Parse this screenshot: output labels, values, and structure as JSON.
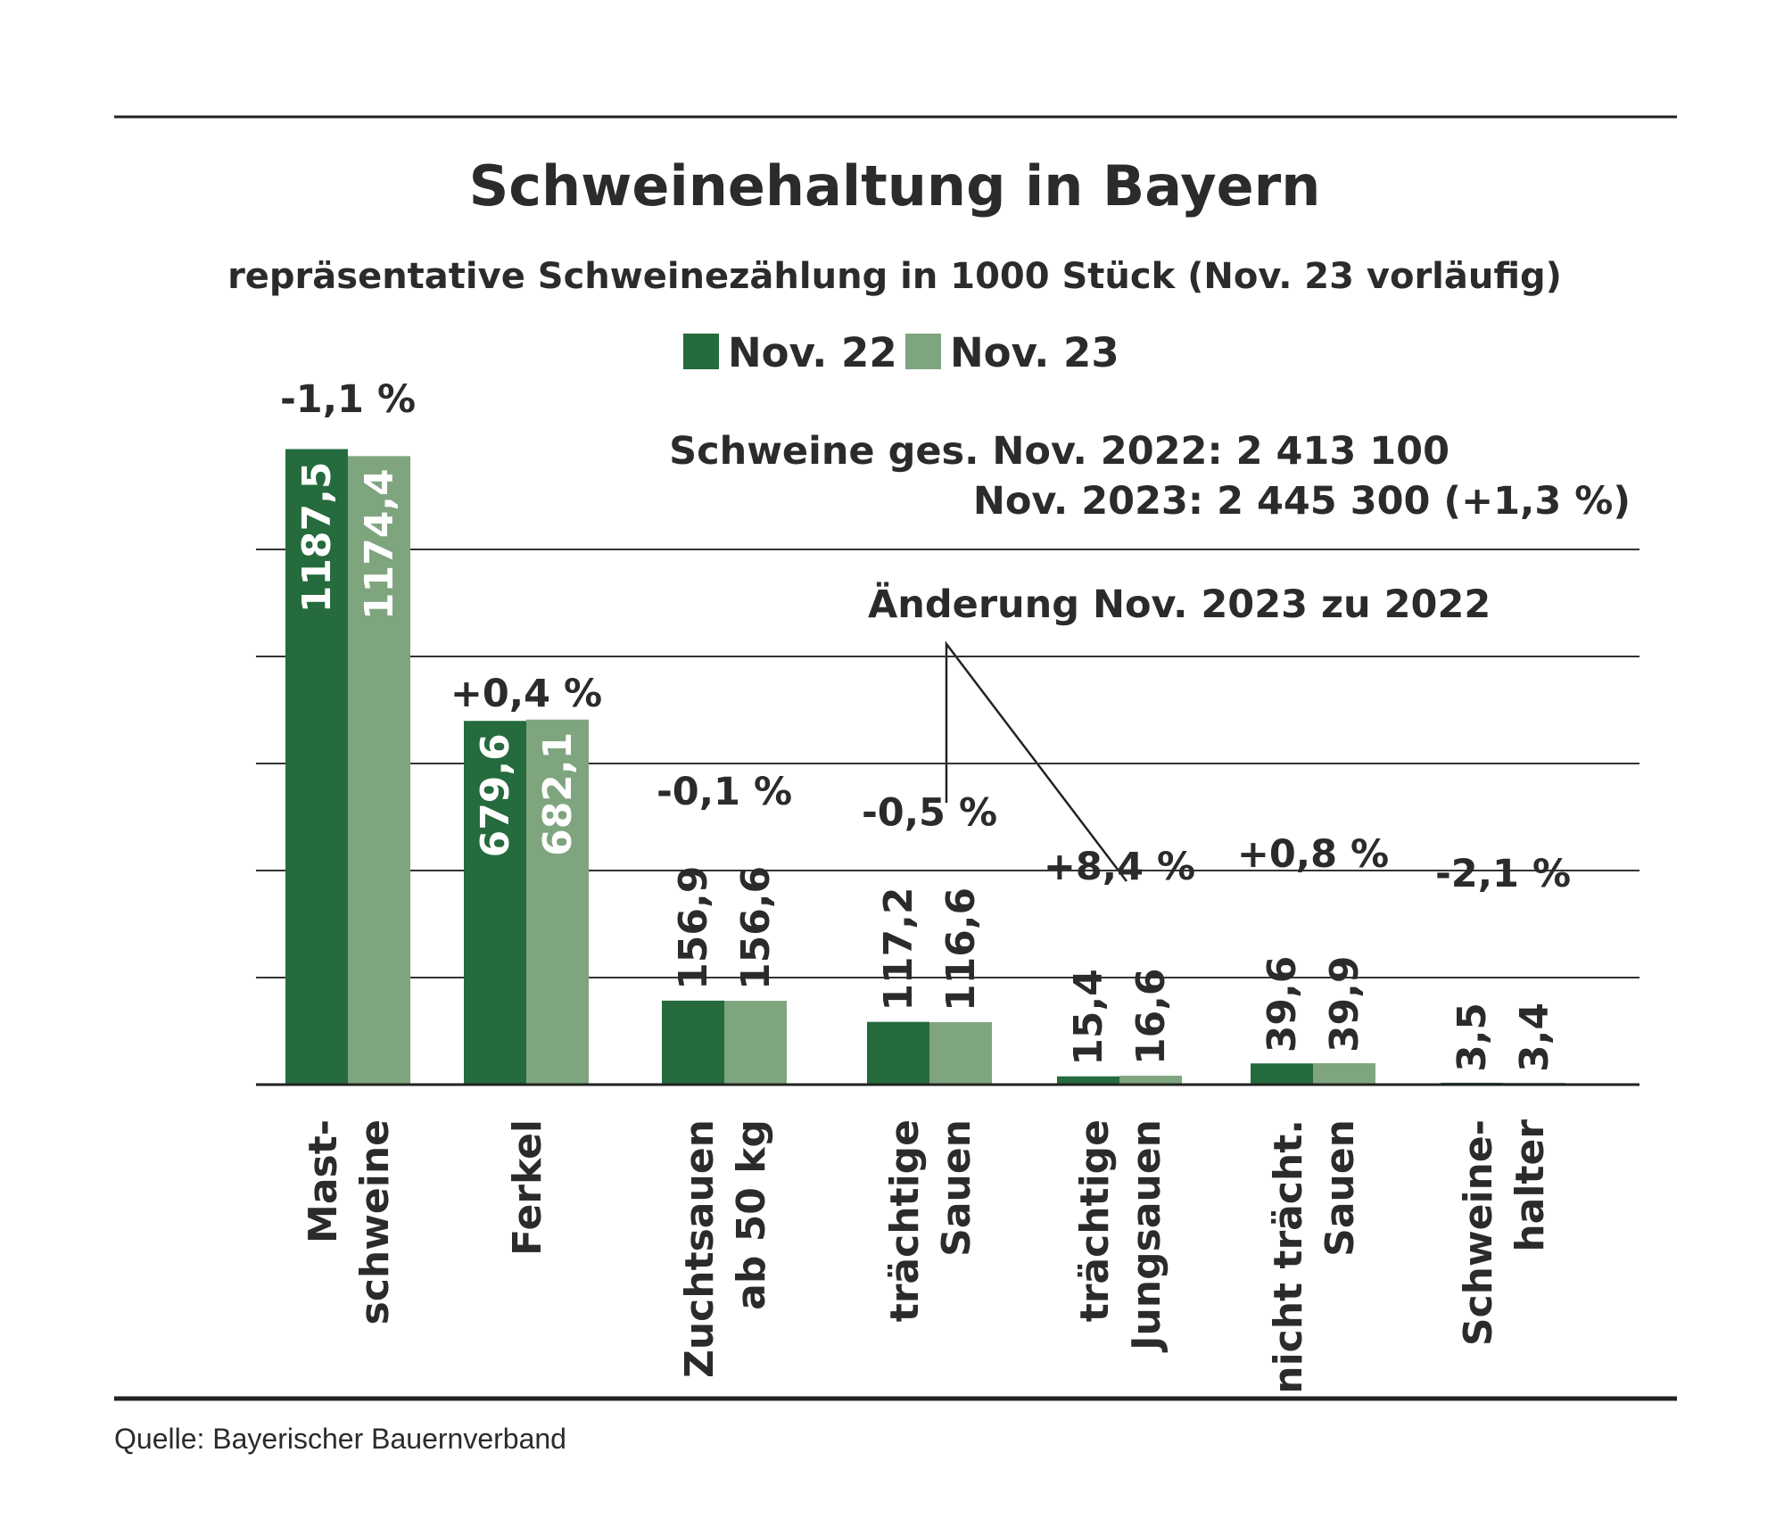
{
  "chart_data": {
    "type": "bar",
    "title": "Schweinehaltung in Bayern",
    "subtitle": "repräsentative Schweinezählung in 1000 Stück (Nov. 23 vorläufig)",
    "categories": [
      [
        "Mast-",
        "schweine"
      ],
      [
        "Ferkel"
      ],
      [
        "Zuchtsauen",
        "ab 50 kg"
      ],
      [
        "trächtige",
        "Sauen"
      ],
      [
        "trächtige",
        "Jungsauen"
      ],
      [
        "nicht trächt.",
        "Sauen"
      ],
      [
        "Schweine-",
        "halter"
      ]
    ],
    "series": [
      {
        "name": "Nov. 22",
        "color": "#256b3d",
        "values": [
          1187.5,
          679.6,
          156.9,
          117.2,
          15.4,
          39.6,
          3.5
        ],
        "labels": [
          "1187,5",
          "679,6",
          "156,9",
          "117,2",
          "15,4",
          "39,6",
          "3,5"
        ]
      },
      {
        "name": "Nov. 23",
        "color": "#7fa57f",
        "values": [
          1174.4,
          682.1,
          156.6,
          116.6,
          16.6,
          39.9,
          3.4
        ],
        "labels": [
          "1174,4",
          "682,1",
          "156,6",
          "116,6",
          "16,6",
          "39,9",
          "3,4"
        ]
      }
    ],
    "changes": [
      "-1,1 %",
      "+0,4 %",
      "-0,1 %",
      "-0,5 %",
      "+8,4 %",
      "+0,8 %",
      "-2,1 %"
    ],
    "totals": {
      "line1": "Schweine ges. Nov. 2022: 2 413 100",
      "line2": "Nov. 2023: 2 445 300 (+1,3 %)"
    },
    "annotation": "Änderung Nov. 2023 zu 2022",
    "ylim": [
      0,
      1250
    ],
    "gridlines": [
      200,
      400,
      600,
      800,
      1000
    ],
    "legend_position": "top-center"
  },
  "source": "Quelle: Bayerischer Bauernverband"
}
